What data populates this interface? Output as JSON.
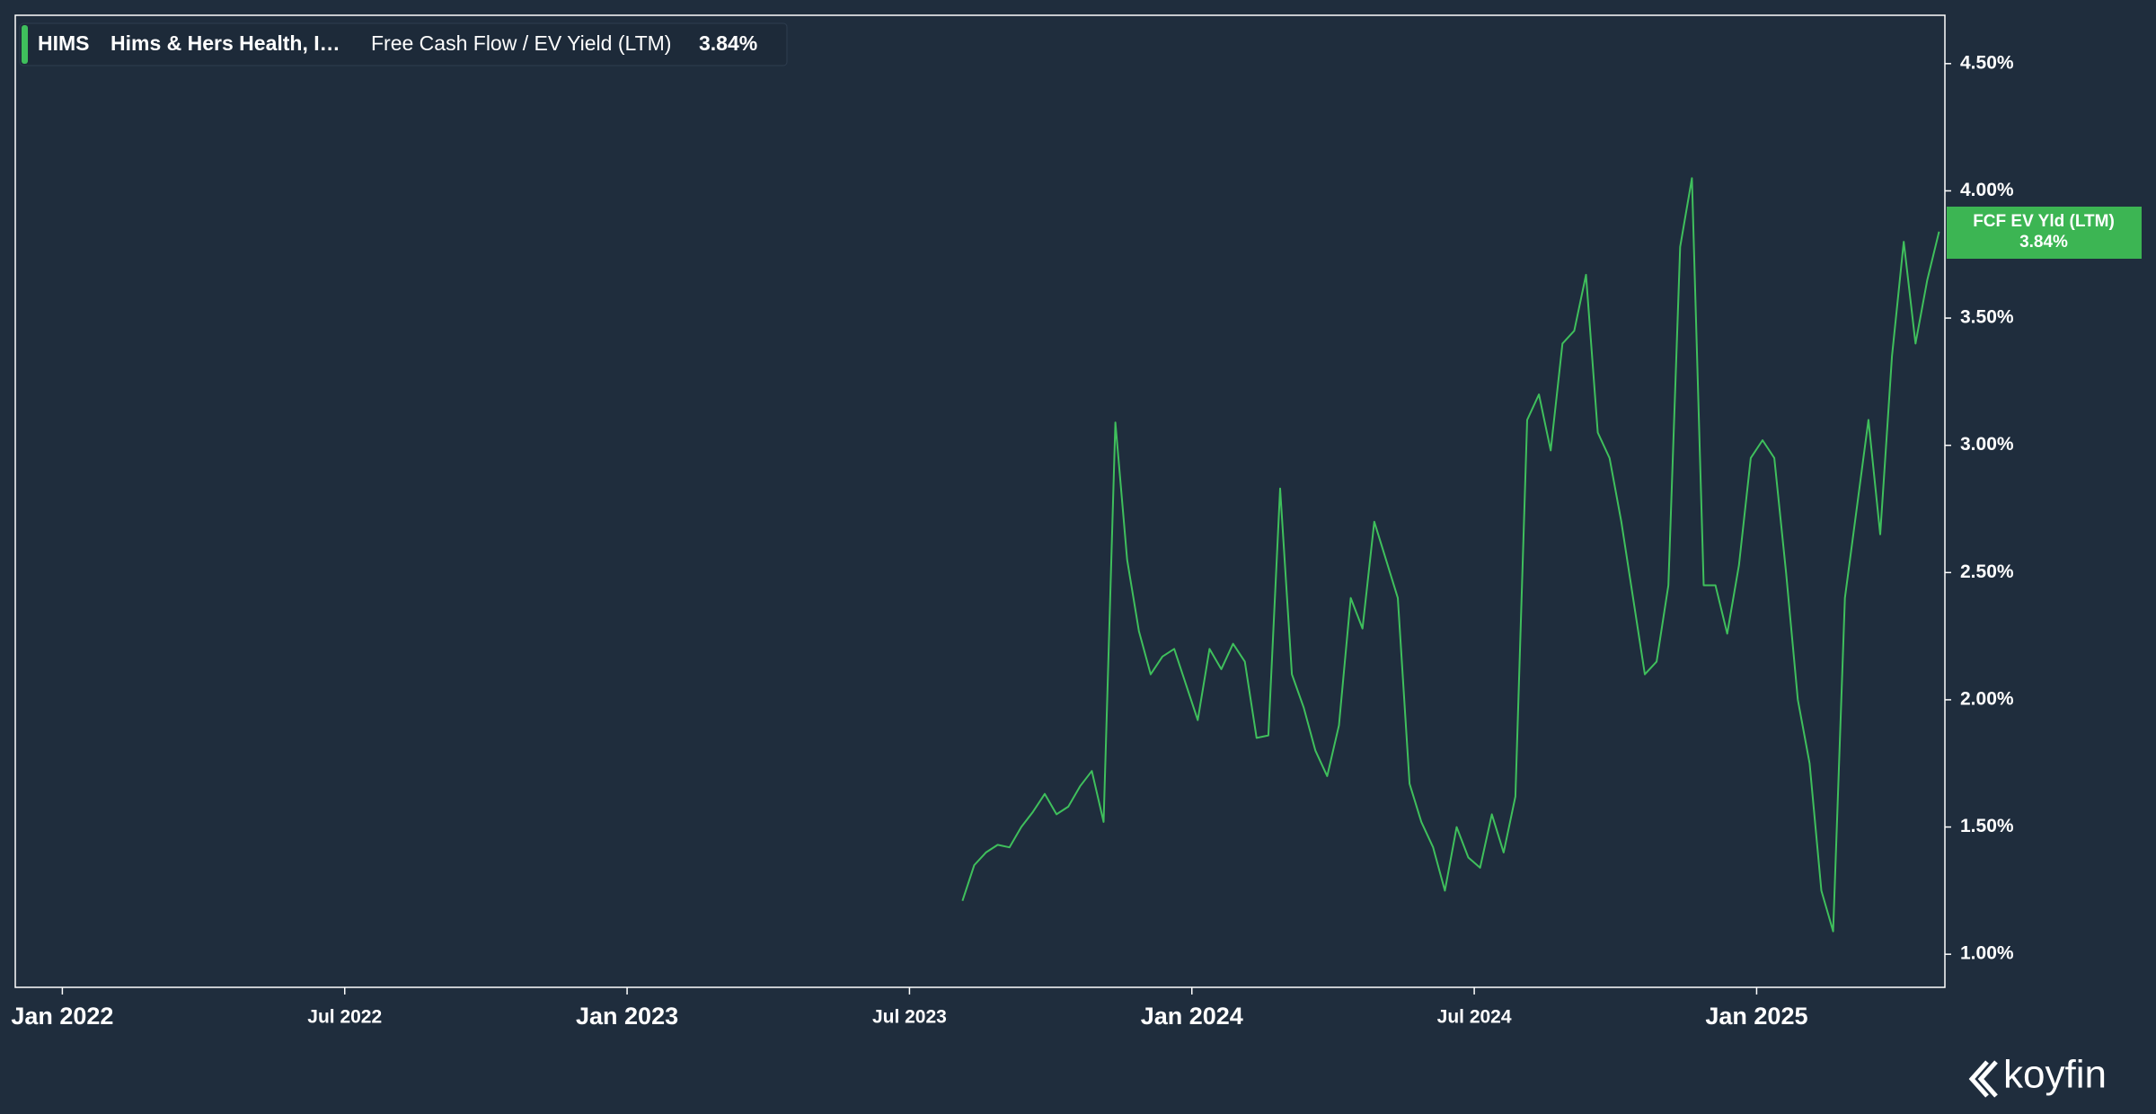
{
  "header": {
    "ticker": "HIMS",
    "company": "Hims & Hers Health, I…",
    "value": "3.84%"
  },
  "price_tag": {
    "label": "FCF EV Yld (LTM)",
    "value": "3.84%"
  },
  "brand": "koyfin",
  "chart_data": {
    "type": "line",
    "x": [
      "2023-08",
      "2023-08",
      "2023-08",
      "2023-08",
      "2023-09",
      "2023-09",
      "2023-09",
      "2023-09",
      "2023-10",
      "2023-10",
      "2023-10",
      "2023-10",
      "2023-11",
      "2023-11",
      "2023-11",
      "2023-11",
      "2023-12",
      "2023-12",
      "2023-12",
      "2023-12",
      "2024-01",
      "2024-01",
      "2024-01",
      "2024-01",
      "2024-02",
      "2024-02",
      "2024-02",
      "2024-02",
      "2024-03",
      "2024-03",
      "2024-03",
      "2024-03",
      "2024-04",
      "2024-04",
      "2024-04",
      "2024-04",
      "2024-05",
      "2024-05",
      "2024-05",
      "2024-05",
      "2024-06",
      "2024-06",
      "2024-06",
      "2024-06",
      "2024-07",
      "2024-07",
      "2024-07",
      "2024-07",
      "2024-08",
      "2024-08",
      "2024-08",
      "2024-08",
      "2024-09",
      "2024-09",
      "2024-09",
      "2024-09",
      "2024-10",
      "2024-10",
      "2024-10",
      "2024-10",
      "2024-11",
      "2024-11",
      "2024-11",
      "2024-11",
      "2024-12",
      "2024-12",
      "2024-12",
      "2024-12",
      "2025-01",
      "2025-01",
      "2025-01",
      "2025-01",
      "2025-02",
      "2025-02",
      "2025-02",
      "2025-02",
      "2025-03",
      "2025-03",
      "2025-03",
      "2025-03",
      "2025-04",
      "2025-04",
      "2025-04",
      "2025-04"
    ],
    "series": [
      {
        "name": "Free Cash Flow / EV Yield (LTM)",
        "color": "#3fbf5c",
        "values": [
          1.21,
          1.35,
          1.4,
          1.43,
          1.42,
          1.5,
          1.56,
          1.63,
          1.55,
          1.58,
          1.66,
          1.72,
          1.52,
          3.09,
          2.55,
          2.27,
          2.1,
          2.17,
          2.2,
          2.06,
          1.92,
          2.2,
          2.12,
          2.22,
          2.15,
          1.85,
          1.86,
          2.83,
          2.1,
          1.97,
          1.8,
          1.7,
          1.9,
          2.4,
          2.28,
          2.7,
          2.55,
          2.4,
          1.67,
          1.52,
          1.42,
          1.25,
          1.5,
          1.38,
          1.34,
          1.55,
          1.4,
          1.62,
          3.1,
          3.2,
          2.98,
          3.4,
          3.45,
          3.67,
          3.05,
          2.95,
          2.7,
          2.4,
          2.1,
          2.15,
          2.45,
          3.78,
          4.05,
          2.45,
          2.45,
          2.26,
          2.53,
          2.95,
          3.02,
          2.95,
          2.5,
          2.0,
          1.75,
          1.25,
          1.09,
          2.4,
          2.75,
          3.1,
          2.65,
          3.35,
          3.8,
          3.4,
          3.65,
          3.84
        ]
      }
    ],
    "xlim": [
      "2021-12",
      "2025-05"
    ],
    "xticks": [
      {
        "value": "2022-01",
        "label": "Jan 2022"
      },
      {
        "value": "2022-07",
        "label": "Jul 2022"
      },
      {
        "value": "2023-01",
        "label": "Jan 2023"
      },
      {
        "value": "2023-07",
        "label": "Jul 2023"
      },
      {
        "value": "2024-01",
        "label": "Jan 2024"
      },
      {
        "value": "2024-07",
        "label": "Jul 2024"
      },
      {
        "value": "2025-01",
        "label": "Jan 2025"
      }
    ],
    "ylim": [
      0.87,
      4.69
    ],
    "yticks": [
      {
        "value": 1.0,
        "label": "1.00%"
      },
      {
        "value": 1.5,
        "label": "1.50%"
      },
      {
        "value": 2.0,
        "label": "2.00%"
      },
      {
        "value": 2.5,
        "label": "2.50%"
      },
      {
        "value": 3.0,
        "label": "3.00%"
      },
      {
        "value": 3.5,
        "label": "3.50%"
      },
      {
        "value": 4.0,
        "label": "4.00%"
      },
      {
        "value": 4.5,
        "label": "4.50%"
      }
    ],
    "grid": false
  }
}
